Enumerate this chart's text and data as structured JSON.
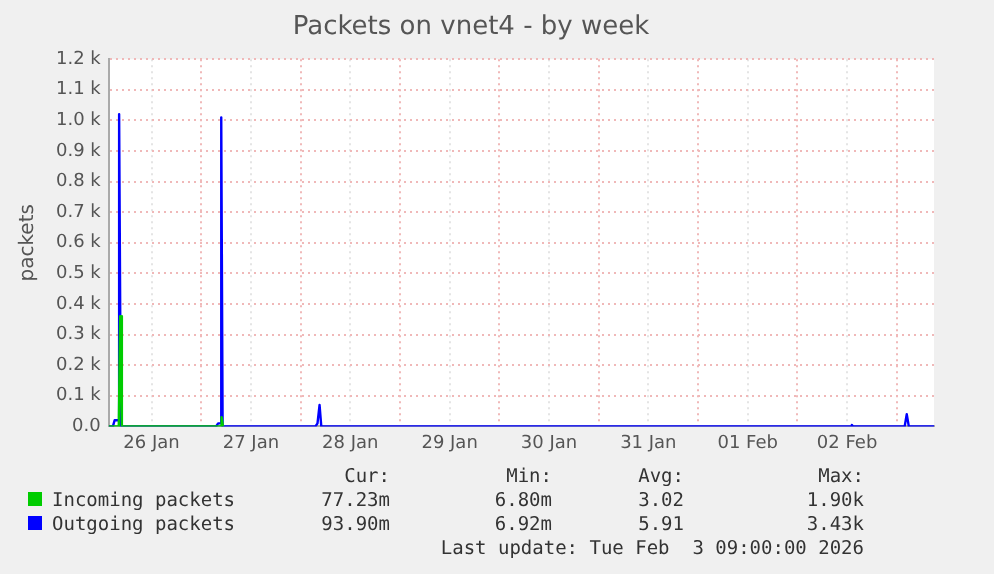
{
  "chart_data": {
    "type": "line",
    "title": "Packets on vnet4 - by week",
    "ylabel": "packets",
    "xlim": [
      "2026-01-26T01:40",
      "2026-02-03T09:00"
    ],
    "xticks": [
      {
        "value": "2026-01-26T12:00",
        "label": "26 Jan"
      },
      {
        "value": "2026-01-27",
        "label": null
      },
      {
        "value": "2026-01-27T12:00",
        "label": "27 Jan"
      },
      {
        "value": "2026-01-28",
        "label": null
      },
      {
        "value": "2026-01-28T12:00",
        "label": "28 Jan"
      },
      {
        "value": "2026-01-29",
        "label": null
      },
      {
        "value": "2026-01-29T12:00",
        "label": "29 Jan"
      },
      {
        "value": "2026-01-30",
        "label": null
      },
      {
        "value": "2026-01-30T12:00",
        "label": "30 Jan"
      },
      {
        "value": "2026-01-31",
        "label": null
      },
      {
        "value": "2026-01-31T12:00",
        "label": "31 Jan"
      },
      {
        "value": "2026-02-01",
        "label": null
      },
      {
        "value": "2026-02-01T12:00",
        "label": "01 Feb"
      },
      {
        "value": "2026-02-02",
        "label": null
      },
      {
        "value": "2026-02-02T12:00",
        "label": "02 Feb"
      },
      {
        "value": "2026-02-03",
        "label": null
      }
    ],
    "ylim": [
      0,
      1200
    ],
    "yticks": [
      {
        "value": 0,
        "label": "0.0"
      },
      {
        "value": 100,
        "label": "0.1 k"
      },
      {
        "value": 200,
        "label": "0.2 k"
      },
      {
        "value": 300,
        "label": "0.3 k"
      },
      {
        "value": 400,
        "label": "0.4 k"
      },
      {
        "value": 500,
        "label": "0.5 k"
      },
      {
        "value": 600,
        "label": "0.6 k"
      },
      {
        "value": 700,
        "label": "0.7 k"
      },
      {
        "value": 800,
        "label": "0.8 k"
      },
      {
        "value": 900,
        "label": "0.9 k"
      },
      {
        "value": 1000,
        "label": "1.0 k"
      },
      {
        "value": 1100,
        "label": "1.1 k"
      },
      {
        "value": 1200,
        "label": "1.2 k"
      }
    ],
    "grid": true,
    "legend": "bottom",
    "marker": "none",
    "line_style": "solid",
    "series": [
      {
        "name": "Incoming packets",
        "color": "#00cc00",
        "x": [
          "2026-01-26T01:40",
          "2026-01-26T04:05",
          "2026-01-26T04:25",
          "2026-01-26T04:50",
          "2026-01-27T04:35",
          "2026-01-27T04:55",
          "2026-01-27T05:15"
        ],
        "values": [
          0,
          0,
          360,
          0,
          0,
          30,
          0
        ]
      },
      {
        "name": "Outgoing packets",
        "color": "#0000ff",
        "x": [
          "2026-01-26T01:40",
          "2026-01-26T02:40",
          "2026-01-26T03:05",
          "2026-01-26T03:55",
          "2026-01-26T04:10",
          "2026-01-26T04:35",
          "2026-01-27T03:35",
          "2026-01-27T04:05",
          "2026-01-27T04:35",
          "2026-01-27T04:50",
          "2026-01-27T05:10",
          "2026-01-28T03:35",
          "2026-01-28T04:05",
          "2026-01-28T04:35",
          "2026-01-28T05:00",
          "2026-02-02T12:45",
          "2026-02-02T13:10",
          "2026-02-02T13:25",
          "2026-02-03T01:55",
          "2026-02-03T02:25",
          "2026-02-03T02:55",
          "2026-02-03T09:00"
        ],
        "values": [
          0,
          0,
          20,
          20,
          1020,
          0,
          0,
          10,
          10,
          1010,
          0,
          0,
          10,
          70,
          0,
          0,
          5,
          0,
          0,
          40,
          0,
          0
        ]
      }
    ],
    "annotations": [
      "Cur:",
      "Min:",
      "Avg:",
      "Max:",
      "77.23m",
      "6.80m",
      "3.02",
      "1.90k",
      "93.90m",
      "6.92m",
      "5.91",
      "3.43k",
      "Last update: Tue Feb  3 09:00:00 2026"
    ]
  }
}
